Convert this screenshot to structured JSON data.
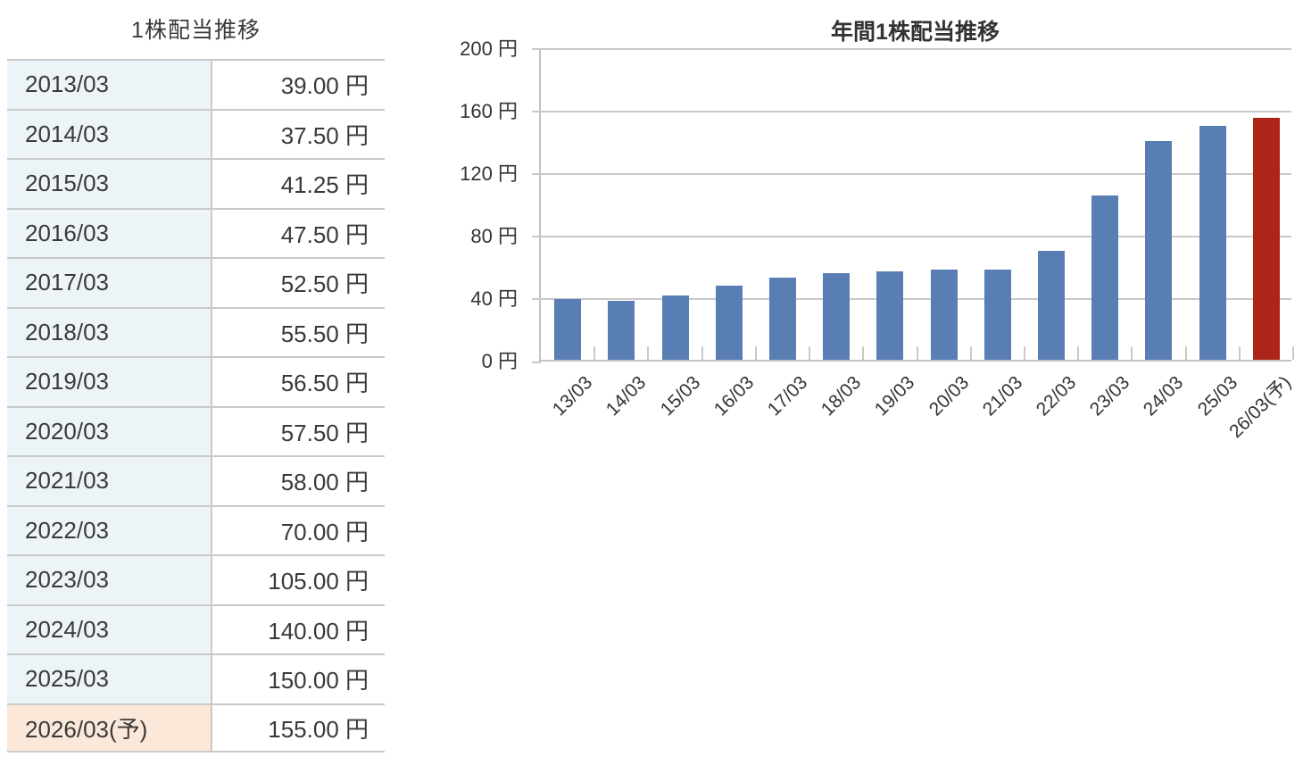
{
  "table": {
    "title": "1株配当推移",
    "rows": [
      {
        "label": "2013/03",
        "value": "39.00 円",
        "forecast": false
      },
      {
        "label": "2014/03",
        "value": "37.50 円",
        "forecast": false
      },
      {
        "label": "2015/03",
        "value": "41.25 円",
        "forecast": false
      },
      {
        "label": "2016/03",
        "value": "47.50 円",
        "forecast": false
      },
      {
        "label": "2017/03",
        "value": "52.50 円",
        "forecast": false
      },
      {
        "label": "2018/03",
        "value": "55.50 円",
        "forecast": false
      },
      {
        "label": "2019/03",
        "value": "56.50 円",
        "forecast": false
      },
      {
        "label": "2020/03",
        "value": "57.50 円",
        "forecast": false
      },
      {
        "label": "2021/03",
        "value": "58.00 円",
        "forecast": false
      },
      {
        "label": "2022/03",
        "value": "70.00 円",
        "forecast": false
      },
      {
        "label": "2023/03",
        "value": "105.00 円",
        "forecast": false
      },
      {
        "label": "2024/03",
        "value": "140.00 円",
        "forecast": false
      },
      {
        "label": "2025/03",
        "value": "150.00 円",
        "forecast": false
      },
      {
        "label": "2026/03(予)",
        "value": "155.00 円",
        "forecast": true
      }
    ],
    "colors": {
      "label_bg": "#ecf4f7",
      "forecast_label_bg": "#fbe8d9",
      "border": "#c9c9c9",
      "text": "#3a3a3a"
    }
  },
  "chart_data": {
    "type": "bar",
    "title": "年間1株配当推移",
    "categories": [
      "13/03",
      "14/03",
      "15/03",
      "16/03",
      "17/03",
      "18/03",
      "19/03",
      "20/03",
      "21/03",
      "22/03",
      "23/03",
      "24/03",
      "25/03",
      "26/03(予)"
    ],
    "values": [
      39,
      37.5,
      41.25,
      47.5,
      52.5,
      55.5,
      56.5,
      57.5,
      58,
      70,
      105,
      140,
      150,
      155
    ],
    "unit": "円",
    "ylim": [
      0,
      200
    ],
    "ytick_values": [
      0,
      40,
      80,
      120,
      160,
      200
    ],
    "ytick_labels": [
      "0 円",
      "40 円",
      "80 円",
      "120 円",
      "160 円",
      "200 円"
    ],
    "grid": true,
    "legend": "none",
    "forecast_index": 13,
    "bar_color": "#587eb4",
    "forecast_bar_color": "#ac2517",
    "grid_color": "#c9c9c9",
    "axis_color": "#c2c2c2",
    "text_color": "#333333"
  }
}
